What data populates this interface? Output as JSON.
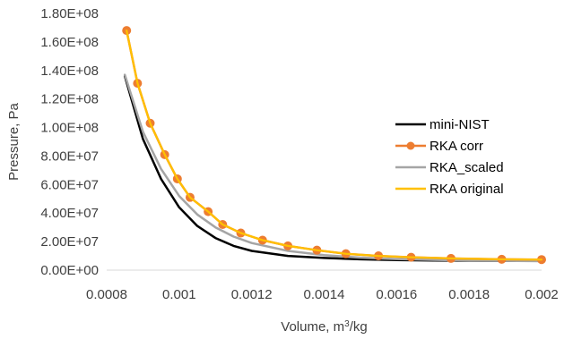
{
  "chart_data": {
    "type": "line",
    "title": "",
    "xlabel": "Volume, m³/kg",
    "xlabel_main": "Volume, m",
    "xlabel_sup": "3",
    "xlabel_tail": "/kg",
    "ylabel": "Pressure, Pa",
    "xlim": [
      0.0008,
      0.002
    ],
    "ylim": [
      0,
      180000000
    ],
    "x_ticks": [
      "0.0008",
      "0.001",
      "0.0012",
      "0.0014",
      "0.0016",
      "0.0018",
      "0.002"
    ],
    "y_ticks": [
      "0.00E+00",
      "2.00E+07",
      "4.00E+07",
      "6.00E+07",
      "8.00E+07",
      "1.00E+08",
      "1.20E+08",
      "1.40E+08",
      "1.60E+08",
      "1.80E+08"
    ],
    "grid": false,
    "legend_position": "right",
    "series": [
      {
        "name": "mini-NIST",
        "color": "#000000",
        "marker": "none",
        "x": [
          0.00085,
          0.0009,
          0.00095,
          0.001,
          0.00105,
          0.0011,
          0.00115,
          0.0012,
          0.0013,
          0.0014,
          0.0015,
          0.0016,
          0.0017,
          0.0018,
          0.0019,
          0.002
        ],
        "y": [
          136000000,
          92000000,
          64000000,
          44000000,
          31000000,
          22500000,
          17000000,
          13500000,
          10000000,
          8500000,
          7600000,
          7100000,
          6800000,
          6600000,
          6500000,
          6400000
        ]
      },
      {
        "name": "RKA corr",
        "color": "#ED7D31",
        "marker": "circle",
        "x": [
          0.000855,
          0.000885,
          0.00092,
          0.00096,
          0.000995,
          0.00103,
          0.00108,
          0.00112,
          0.00117,
          0.00123,
          0.0013,
          0.00138,
          0.00146,
          0.00155,
          0.00164,
          0.00175,
          0.00189,
          0.002
        ],
        "y": [
          168000000,
          131000000,
          103000000,
          81000000,
          64000000,
          51000000,
          41000000,
          32000000,
          26000000,
          21000000,
          17000000,
          14000000,
          11500000,
          10000000,
          9000000,
          8200000,
          7600000,
          7400000
        ]
      },
      {
        "name": "RKA_scaled",
        "color": "#A5A5A5",
        "marker": "none",
        "x": [
          0.00085,
          0.0009,
          0.00095,
          0.001,
          0.00105,
          0.0011,
          0.00115,
          0.0012,
          0.0013,
          0.0014,
          0.0015,
          0.0016,
          0.0017,
          0.0018,
          0.0019,
          0.002
        ],
        "y": [
          137000000,
          97000000,
          71000000,
          52000000,
          39000000,
          30000000,
          23500000,
          19000000,
          13500000,
          10500000,
          8800000,
          7800000,
          7200000,
          6800000,
          6500000,
          6300000
        ]
      },
      {
        "name": "RKA original",
        "color": "#FFC000",
        "marker": "none",
        "x": [
          0.000855,
          0.000885,
          0.00092,
          0.00096,
          0.000995,
          0.00103,
          0.00108,
          0.00112,
          0.00117,
          0.00123,
          0.0013,
          0.00138,
          0.00146,
          0.00155,
          0.00164,
          0.00175,
          0.00189,
          0.002
        ],
        "y": [
          168000000,
          131000000,
          103000000,
          81000000,
          64000000,
          51000000,
          41000000,
          32000000,
          26000000,
          21000000,
          17000000,
          14000000,
          11500000,
          10000000,
          9000000,
          8200000,
          7600000,
          7400000
        ]
      }
    ]
  }
}
